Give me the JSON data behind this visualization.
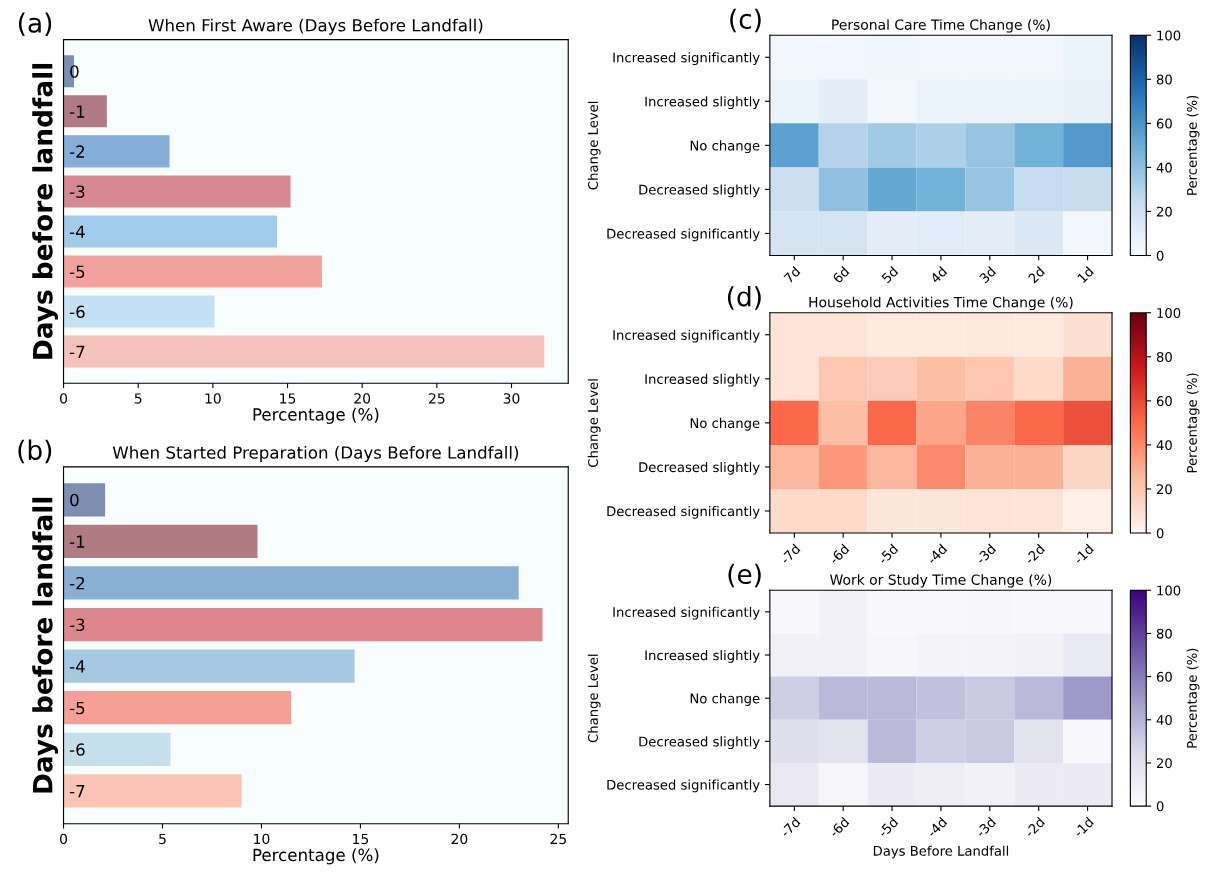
{
  "chart_data": [
    {
      "type": "bar",
      "orientation": "horizontal",
      "title": "When First Aware (Days Before Landfall)",
      "xlabel": "Percentage (%)",
      "ylabel": "Days before landfall",
      "annotations": [
        "(a)"
      ],
      "categories": [
        "0",
        "-1",
        "-2",
        "-3",
        "-4",
        "-5",
        "-6",
        "-7"
      ],
      "values": [
        0.7,
        2.9,
        7.1,
        15.2,
        14.3,
        17.3,
        10.1,
        32.2
      ],
      "colors": [
        "#7b8fb5",
        "#b07a86",
        "#86aedb",
        "#d88891",
        "#a0cbea",
        "#f2a19d",
        "#c4e0f5",
        "#f6c3ba"
      ],
      "xlim": [
        0,
        33.8
      ],
      "xticks": [
        0,
        5,
        10,
        15,
        20,
        25,
        30
      ]
    },
    {
      "type": "bar",
      "orientation": "horizontal",
      "title": "When Started Preparation (Days Before Landfall)",
      "xlabel": "Percentage (%)",
      "ylabel": "Days before landfall",
      "annotations": [
        "(b)"
      ],
      "categories": [
        "0",
        "-1",
        "-2",
        "-3",
        "-4",
        "-5",
        "-6",
        "-7"
      ],
      "values": [
        2.1,
        9.8,
        23.0,
        24.2,
        14.7,
        11.5,
        5.4,
        9.0
      ],
      "colors": [
        "#7d8fb0",
        "#b07c82",
        "#8aafd4",
        "#dd868b",
        "#a5c9e3",
        "#f59f96",
        "#c6dfed",
        "#fbc4b4"
      ],
      "xlim": [
        0,
        25.5
      ],
      "xticks": [
        0,
        5,
        10,
        15,
        20,
        25
      ]
    },
    {
      "type": "heatmap",
      "title": "Personal Care Time Change (%)",
      "ylabel": "Change Level",
      "clabel": "Percentage (%)",
      "annotations": [
        "(c)"
      ],
      "categories": [
        "7d",
        "6d",
        "5d",
        "4d",
        "3d",
        "2d",
        "1d"
      ],
      "y_categories": [
        "Increased significantly",
        "Increased slightly",
        "No change",
        "Decreased slightly",
        "Decreased significantly"
      ],
      "cells": [
        [
          3,
          3,
          4,
          3,
          3,
          3,
          6
        ],
        [
          6,
          10,
          3,
          7,
          7,
          7,
          8
        ],
        [
          55,
          30,
          35,
          32,
          38,
          48,
          58
        ],
        [
          22,
          40,
          52,
          48,
          38,
          25,
          24
        ],
        [
          18,
          18,
          10,
          12,
          10,
          15,
          3
        ]
      ],
      "colors": [
        "#f7fbff",
        "#c6dbef",
        "#6baed6",
        "#2171b5",
        "#08306b"
      ],
      "clim": [
        0,
        100
      ],
      "cticks": [
        0,
        20,
        40,
        60,
        80,
        100
      ]
    },
    {
      "type": "heatmap",
      "title": "Household Activities Time Change (%)",
      "ylabel": "Change Level",
      "clabel": "Percentage (%)",
      "annotations": [
        "(d)"
      ],
      "categories": [
        "-7d",
        "-6d",
        "-5d",
        "-4d",
        "-3d",
        "-2d",
        "-1d"
      ],
      "y_categories": [
        "Increased significantly",
        "Increased slightly",
        "No change",
        "Decreased slightly",
        "Decreased significantly"
      ],
      "cells": [
        [
          8,
          8,
          5,
          5,
          6,
          5,
          9
        ],
        [
          8,
          20,
          18,
          24,
          20,
          12,
          28
        ],
        [
          50,
          24,
          50,
          32,
          42,
          50,
          58
        ],
        [
          26,
          36,
          26,
          40,
          28,
          28,
          14
        ],
        [
          12,
          12,
          7,
          7,
          8,
          8,
          3
        ]
      ],
      "colors": [
        "#fff5f0",
        "#fcbba1",
        "#fb6a4a",
        "#cb181d",
        "#67000d"
      ],
      "clim": [
        0,
        100
      ],
      "cticks": [
        0,
        20,
        40,
        60,
        80,
        100
      ]
    },
    {
      "type": "heatmap",
      "title": "Work or Study Time Change (%)",
      "xlabel": "Days Before Landfall",
      "ylabel": "Change Level",
      "clabel": "Percentage (%)",
      "annotations": [
        "(e)"
      ],
      "categories": [
        "-7d",
        "-6d",
        "-5d",
        "-4d",
        "-3d",
        "-2d",
        "-1d"
      ],
      "y_categories": [
        "Increased significantly",
        "Increased slightly",
        "No change",
        "Decreased slightly",
        "Decreased significantly"
      ],
      "cells": [
        [
          2,
          8,
          2,
          3,
          4,
          3,
          3
        ],
        [
          8,
          8,
          4,
          6,
          6,
          8,
          14
        ],
        [
          30,
          38,
          38,
          35,
          32,
          38,
          50
        ],
        [
          22,
          18,
          38,
          30,
          32,
          18,
          3
        ],
        [
          15,
          5,
          12,
          10,
          8,
          12,
          12
        ]
      ],
      "colors": [
        "#fcfbfd",
        "#dadaeb",
        "#9e9ac8",
        "#6a51a3",
        "#3f007d"
      ],
      "clim": [
        0,
        100
      ],
      "cticks": [
        0,
        20,
        40,
        60,
        80,
        100
      ]
    }
  ]
}
